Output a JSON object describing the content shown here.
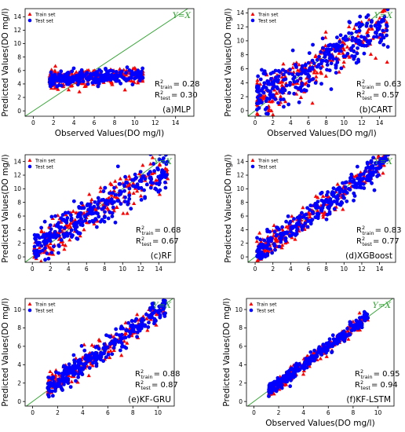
{
  "colors": {
    "train": "#ff0000",
    "test": "#0000ff",
    "identity_line": "#2ca02c",
    "yx_label": "#2ca02c"
  },
  "legend_labels": {
    "train": "Train set",
    "test": "Test set"
  },
  "identity_label": "Y=X",
  "chart_data": [
    {
      "type": "scatter",
      "panel_label": "(a)MLP",
      "xlabel": "Observed Values(DO mg/l)",
      "ylabel": "Predicted Values(DO mg/l)",
      "xlim": [
        -0.8,
        15.8
      ],
      "ylim": [
        -0.8,
        15.2
      ],
      "xticks": [
        0,
        2,
        4,
        6,
        8,
        10,
        12,
        14
      ],
      "yticks": [
        0,
        2,
        4,
        6,
        8,
        10,
        12,
        14
      ],
      "r2_train": "0.28",
      "r2_test": "0.30",
      "metrics_train_text": "= 0.28",
      "metrics_test_text": "= 0.30",
      "legend_position": "top-left",
      "grid": false,
      "series": [
        {
          "name": "Train set",
          "marker": "triangle",
          "cluster": {
            "x_range": [
              1.6,
              10.8
            ],
            "y_center": 5.0,
            "y_spread": 0.6,
            "slope": 0.08,
            "n": 240
          }
        },
        {
          "name": "Test set",
          "marker": "circle",
          "cluster": {
            "x_range": [
              1.6,
              10.8
            ],
            "y_center": 5.0,
            "y_spread": 0.5,
            "slope": 0.08,
            "n": 260
          }
        }
      ]
    },
    {
      "type": "scatter",
      "panel_label": "(b)CART",
      "xlabel": "Observed Values(DO mg/l)",
      "ylabel": "Predicted Values(DO mg/l)",
      "xlim": [
        -0.8,
        15.8
      ],
      "ylim": [
        -0.8,
        14.6
      ],
      "xticks": [
        0,
        2,
        4,
        6,
        8,
        10,
        12,
        14
      ],
      "yticks": [
        0,
        2,
        4,
        6,
        8,
        10,
        12,
        14
      ],
      "r2_train": "0.63",
      "r2_test": "0.57",
      "metrics_train_text": "= 0.63",
      "metrics_test_text": "= 0.57",
      "legend_position": "top-left",
      "grid": false,
      "series": [
        {
          "name": "Train set",
          "marker": "triangle",
          "cluster": {
            "x_range": [
              0.2,
              15
            ],
            "y_center": null,
            "y_spread": 1.6,
            "slope": 0.75,
            "n": 240
          }
        },
        {
          "name": "Test set",
          "marker": "circle",
          "cluster": {
            "x_range": [
              0.2,
              15
            ],
            "y_center": null,
            "y_spread": 1.6,
            "slope": 0.75,
            "n": 300
          }
        }
      ]
    },
    {
      "type": "scatter",
      "panel_label": "(c)RF",
      "xlabel": "",
      "ylabel": "Predicted Values(DO mg/l)",
      "xlim": [
        -0.8,
        15.8
      ],
      "ylim": [
        -0.8,
        15.0
      ],
      "xticks": [
        0,
        2,
        4,
        6,
        8,
        10,
        12,
        14
      ],
      "yticks": [
        0,
        2,
        4,
        6,
        8,
        10,
        12,
        14
      ],
      "r2_train": "0.68",
      "r2_test": "0.67",
      "metrics_train_text": "= 0.68",
      "metrics_test_text": "= 0.67",
      "legend_position": "top-left",
      "grid": false,
      "series": [
        {
          "name": "Train set",
          "marker": "triangle",
          "cluster": {
            "x_range": [
              0.2,
              15
            ],
            "y_center": null,
            "y_spread": 1.4,
            "slope": 0.8,
            "n": 220
          }
        },
        {
          "name": "Test set",
          "marker": "circle",
          "cluster": {
            "x_range": [
              0.2,
              15
            ],
            "y_center": null,
            "y_spread": 1.3,
            "slope": 0.8,
            "n": 300
          }
        }
      ]
    },
    {
      "type": "scatter",
      "panel_label": "(d)XGBoost",
      "xlabel": "",
      "ylabel": "Predicted Values(DO mg/l)",
      "xlim": [
        -0.8,
        15.8
      ],
      "ylim": [
        -0.8,
        15.0
      ],
      "xticks": [
        0,
        2,
        4,
        6,
        8,
        10,
        12,
        14
      ],
      "yticks": [
        0,
        2,
        4,
        6,
        8,
        10,
        12,
        14
      ],
      "r2_train": "0.83",
      "r2_test": "0.77",
      "metrics_train_text": "= 0.83",
      "metrics_test_text": "= 0.77",
      "legend_position": "top-left",
      "grid": false,
      "series": [
        {
          "name": "Train set",
          "marker": "triangle",
          "cluster": {
            "x_range": [
              0.2,
              15
            ],
            "y_center": null,
            "y_spread": 1.0,
            "slope": 0.92,
            "n": 220
          }
        },
        {
          "name": "Test set",
          "marker": "circle",
          "cluster": {
            "x_range": [
              0.2,
              15
            ],
            "y_center": null,
            "y_spread": 1.0,
            "slope": 0.92,
            "n": 320
          }
        }
      ]
    },
    {
      "type": "scatter",
      "panel_label": "(e)KF-GRU",
      "xlabel": "",
      "ylabel": "Predicted Values(DO mg/l)",
      "xlim": [
        -0.6,
        11.3
      ],
      "ylim": [
        -0.5,
        11.2
      ],
      "xticks": [
        0,
        2,
        4,
        6,
        8,
        10
      ],
      "yticks": [
        0,
        2,
        4,
        6,
        8,
        10
      ],
      "r2_train": "0.88",
      "r2_test": "0.87",
      "metrics_train_text": "= 0.88",
      "metrics_test_text": "= 0.87",
      "legend_position": "top-left",
      "grid": false,
      "series": [
        {
          "name": "Train set",
          "marker": "triangle",
          "cluster": {
            "x_range": [
              1.2,
              10.6
            ],
            "y_center": null,
            "y_spread": 0.6,
            "slope": 0.95,
            "n": 200
          }
        },
        {
          "name": "Test set",
          "marker": "circle",
          "cluster": {
            "x_range": [
              1.2,
              10.6
            ],
            "y_center": null,
            "y_spread": 0.6,
            "slope": 0.95,
            "n": 300
          }
        }
      ]
    },
    {
      "type": "scatter",
      "panel_label": "(f)KF-LSTM",
      "xlabel": "Observed Values(DO mg/l)",
      "ylabel": "Predicted Values(DO mg/l)",
      "xlim": [
        -0.6,
        11.3
      ],
      "ylim": [
        -0.5,
        11.2
      ],
      "xticks": [
        0,
        2,
        4,
        6,
        8,
        10
      ],
      "yticks": [
        0,
        2,
        4,
        6,
        8,
        10
      ],
      "r2_train": "0.95",
      "r2_test": "0.94",
      "metrics_train_text": "= 0.95",
      "metrics_test_text": "= 0.94",
      "legend_position": "top-left",
      "grid": false,
      "series": [
        {
          "name": "Train set",
          "marker": "triangle",
          "cluster": {
            "x_range": [
              1.2,
              9.2
            ],
            "y_center": null,
            "y_spread": 0.35,
            "slope": 1.0,
            "n": 200
          }
        },
        {
          "name": "Test set",
          "marker": "circle",
          "cluster": {
            "x_range": [
              1.2,
              9.2
            ],
            "y_center": null,
            "y_spread": 0.35,
            "slope": 1.0,
            "n": 280
          }
        }
      ]
    }
  ]
}
